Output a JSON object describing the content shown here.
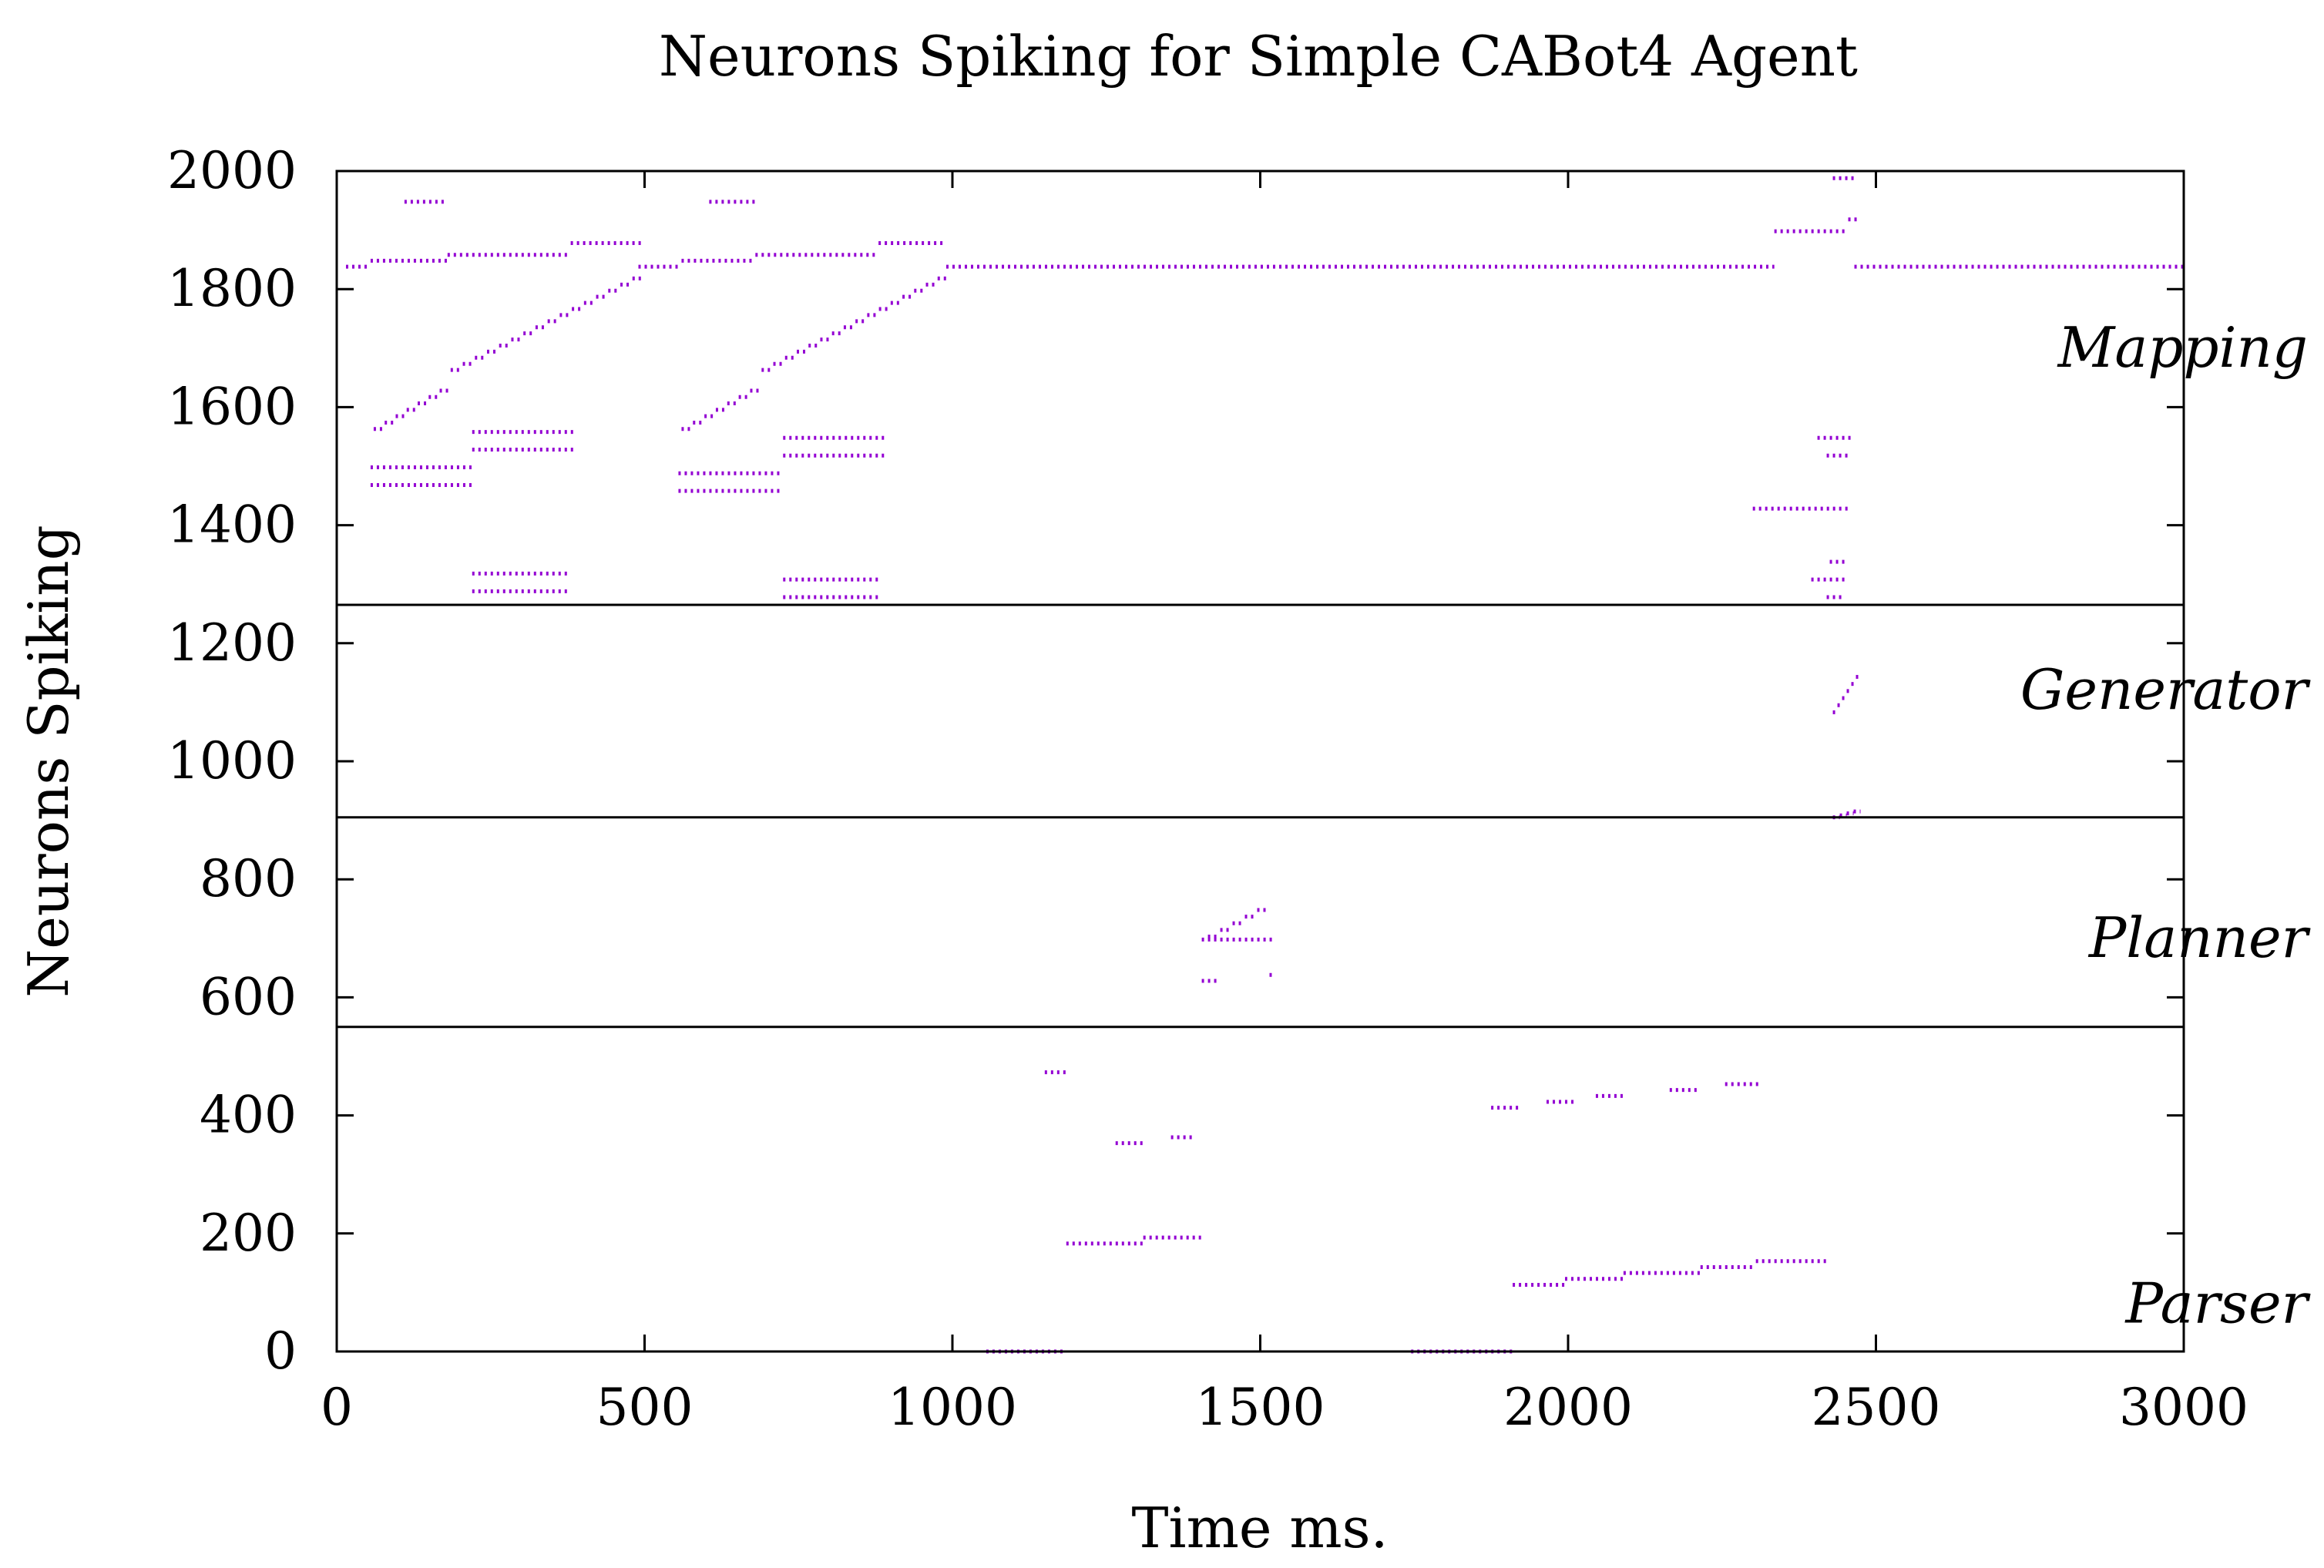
{
  "chart_data": {
    "type": "scatter",
    "title": "Neurons Spiking for Simple CABot4 Agent",
    "xlabel": "Time ms.",
    "ylabel": "Neurons Spiking",
    "xlim": [
      0,
      3000
    ],
    "ylim": [
      0,
      2000
    ],
    "x_ticks": [
      "0",
      "500",
      "1000",
      "1500",
      "2000",
      "2500",
      "3000"
    ],
    "y_ticks": [
      "0",
      "200",
      "400",
      "600",
      "800",
      "1000",
      "1200",
      "1400",
      "1600",
      "1800",
      "2000"
    ],
    "grid": false,
    "point_color": "#9400d3",
    "modules": [
      {
        "name": "Mapping",
        "range": [
          1265,
          2000
        ]
      },
      {
        "name": "Generator",
        "range": [
          905,
          1265
        ]
      },
      {
        "name": "Planner",
        "range": [
          550,
          905
        ]
      },
      {
        "name": "Parser",
        "range": [
          0,
          550
        ]
      }
    ],
    "spike_runs": [
      [
        15,
        55,
        1838
      ],
      [
        55,
        180,
        1848
      ],
      [
        110,
        180,
        1948
      ],
      [
        180,
        380,
        1858
      ],
      [
        380,
        495,
        1878
      ],
      [
        55,
        220,
        1498
      ],
      [
        55,
        220,
        1468
      ],
      [
        220,
        390,
        1558
      ],
      [
        220,
        390,
        1528
      ],
      [
        220,
        375,
        1318
      ],
      [
        220,
        375,
        1288
      ],
      [
        490,
        560,
        1838
      ],
      [
        560,
        680,
        1848
      ],
      [
        605,
        680,
        1948
      ],
      [
        680,
        880,
        1858
      ],
      [
        880,
        990,
        1878
      ],
      [
        555,
        725,
        1488
      ],
      [
        555,
        725,
        1458
      ],
      [
        725,
        895,
        1548
      ],
      [
        725,
        895,
        1518
      ],
      [
        725,
        880,
        1308
      ],
      [
        725,
        880,
        1278
      ],
      [
        990,
        2335,
        1838
      ],
      [
        2465,
        3000,
        1838
      ],
      [
        2335,
        2455,
        1898
      ],
      [
        2430,
        2470,
        1988
      ],
      [
        2455,
        2475,
        1918
      ],
      [
        2300,
        2455,
        1428
      ],
      [
        2405,
        2460,
        1548
      ],
      [
        2420,
        2460,
        1518
      ],
      [
        2395,
        2450,
        1308
      ],
      [
        2425,
        2455,
        1338
      ],
      [
        2420,
        2450,
        1278
      ],
      [
        1405,
        1525,
        698
      ],
      [
        1405,
        1430,
        628
      ],
      [
        1515,
        1525,
        638
      ],
      [
        1055,
        1180,
        0
      ],
      [
        1150,
        1185,
        473
      ],
      [
        1185,
        1310,
        183
      ],
      [
        1310,
        1405,
        193
      ],
      [
        1265,
        1310,
        353
      ],
      [
        1355,
        1395,
        363
      ],
      [
        1745,
        1910,
        0
      ],
      [
        1875,
        1920,
        413
      ],
      [
        1910,
        1995,
        113
      ],
      [
        1995,
        2090,
        123
      ],
      [
        1965,
        2015,
        423
      ],
      [
        2090,
        2215,
        133
      ],
      [
        2045,
        2095,
        433
      ],
      [
        2215,
        2305,
        143
      ],
      [
        2165,
        2215,
        443
      ],
      [
        2305,
        2425,
        153
      ],
      [
        2255,
        2310,
        453
      ]
    ],
    "spike_ramps": [
      [
        60,
        185,
        1563,
        1628
      ],
      [
        185,
        500,
        1663,
        1818
      ],
      [
        560,
        690,
        1563,
        1628
      ],
      [
        690,
        995,
        1663,
        1818
      ],
      [
        2430,
        2475,
        1083,
        1143
      ],
      [
        2430,
        2475,
        905,
        915
      ],
      [
        1415,
        1515,
        703,
        748
      ]
    ]
  }
}
